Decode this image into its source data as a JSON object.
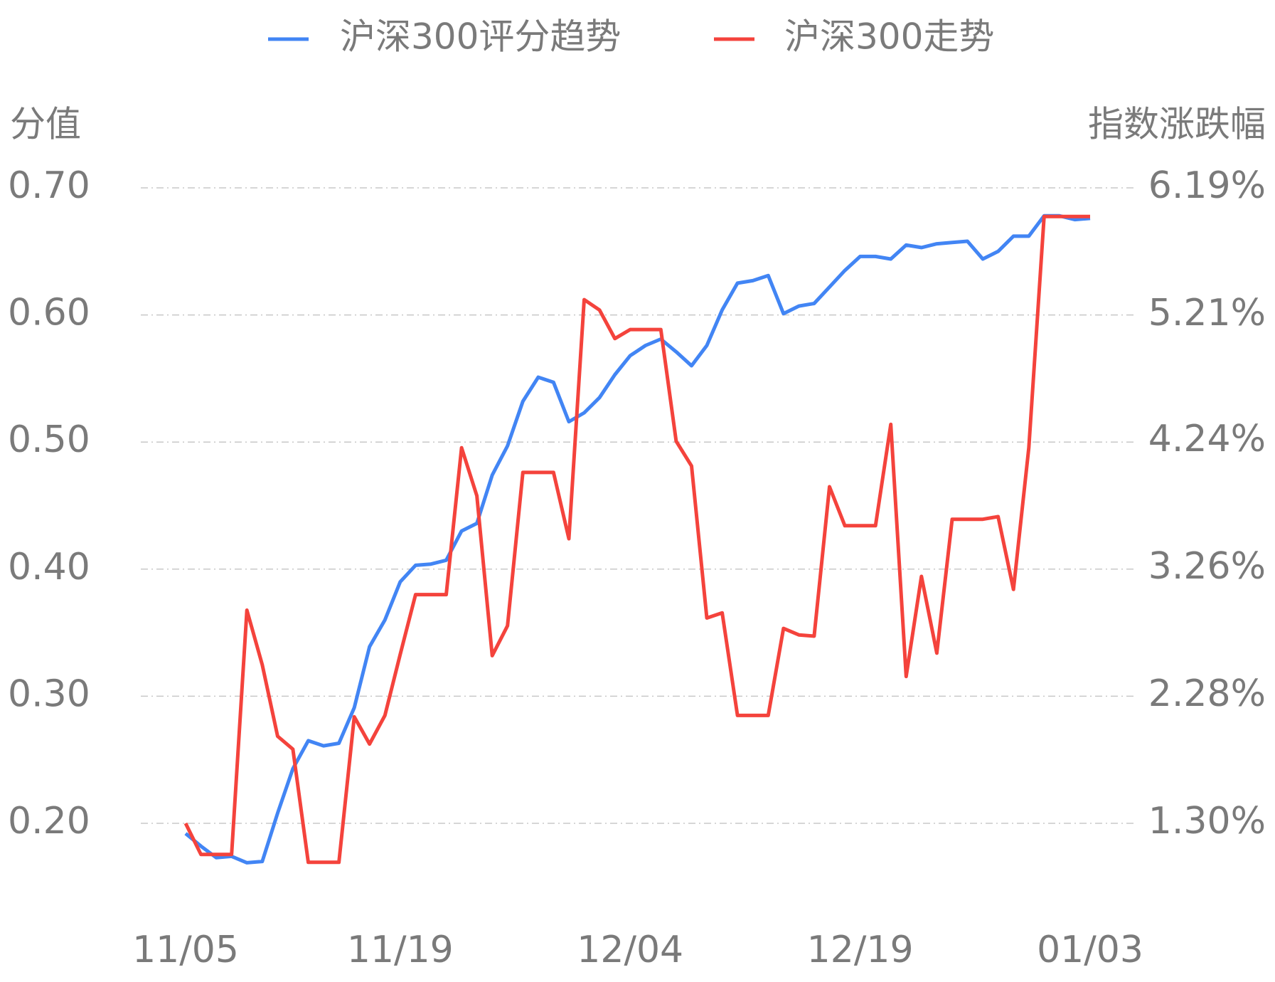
{
  "chart_data": {
    "type": "line",
    "legend": "top",
    "y_label": "分值",
    "y2_label": "指数涨跌幅",
    "categories": [
      "11/05",
      null,
      null,
      null,
      null,
      null,
      null,
      null,
      null,
      null,
      null,
      null,
      null,
      null,
      "11/19",
      null,
      null,
      null,
      null,
      null,
      null,
      null,
      null,
      null,
      null,
      null,
      null,
      null,
      null,
      "12/04",
      null,
      null,
      null,
      null,
      null,
      null,
      null,
      null,
      null,
      null,
      null,
      null,
      null,
      null,
      "12/19",
      null,
      null,
      null,
      null,
      null,
      null,
      null,
      null,
      null,
      null,
      null,
      null,
      null,
      null,
      "01/03"
    ],
    "ylim": [
      0.2,
      0.7
    ],
    "yticks": [
      {
        "value": 0.2,
        "label": "0.20"
      },
      {
        "value": 0.3,
        "label": "0.30"
      },
      {
        "value": 0.4,
        "label": "0.40"
      },
      {
        "value": 0.5,
        "label": "0.50"
      },
      {
        "value": 0.6,
        "label": "0.60"
      },
      {
        "value": 0.7,
        "label": "0.70"
      }
    ],
    "y2lim": [
      1.3,
      6.19
    ],
    "y2ticks": [
      {
        "value": 1.3,
        "label": "1.30%"
      },
      {
        "value": 2.28,
        "label": "2.28%"
      },
      {
        "value": 3.26,
        "label": "3.26%"
      },
      {
        "value": 4.24,
        "label": "4.24%"
      },
      {
        "value": 5.21,
        "label": "5.21%"
      },
      {
        "value": 6.19,
        "label": "6.19%"
      }
    ],
    "grid": true,
    "series": [
      {
        "name": "沪深300评分趋势",
        "color": "#4285f4",
        "values": [
          0.192,
          0.182,
          0.173,
          0.174,
          0.169,
          0.17,
          0.208,
          0.243,
          0.265,
          0.261,
          0.263,
          0.291,
          0.339,
          0.36,
          0.39,
          0.403,
          0.404,
          0.407,
          0.43,
          0.436,
          0.474,
          0.497,
          0.532,
          0.551,
          0.547,
          0.516,
          0.523,
          0.535,
          0.553,
          0.568,
          0.576,
          0.581,
          0.571,
          0.56,
          0.576,
          0.604,
          0.625,
          0.627,
          0.631,
          0.601,
          0.607,
          0.609,
          0.622,
          0.635,
          0.646,
          0.646,
          0.644,
          0.655,
          0.653,
          0.656,
          0.657,
          0.658,
          0.644,
          0.65,
          0.662,
          0.662,
          0.678,
          0.678,
          0.675,
          0.676
        ]
      },
      {
        "name": "沪深300走势",
        "color": "#f4433c",
        "axis": "y2",
        "values": [
          1.3,
          1.06,
          1.06,
          1.06,
          2.94,
          2.52,
          1.97,
          1.87,
          1.0,
          1.0,
          1.0,
          2.12,
          1.91,
          2.13,
          2.6,
          3.06,
          3.06,
          3.06,
          4.19,
          3.82,
          2.59,
          2.82,
          4.0,
          4.0,
          4.0,
          3.49,
          5.33,
          5.25,
          5.03,
          5.1,
          5.1,
          5.1,
          4.24,
          4.05,
          2.88,
          2.92,
          2.13,
          2.13,
          2.13,
          2.8,
          2.75,
          2.74,
          3.89,
          3.59,
          3.59,
          3.59,
          4.37,
          2.43,
          3.2,
          2.61,
          3.64,
          3.64,
          3.64,
          3.66,
          3.1,
          4.19,
          5.97,
          5.97,
          5.97,
          5.97
        ]
      }
    ]
  }
}
